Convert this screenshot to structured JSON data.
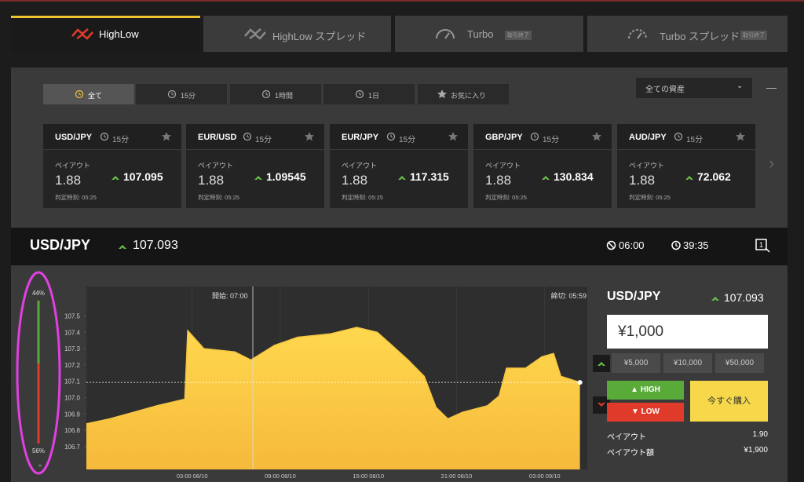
{
  "tabs": [
    {
      "label": "HighLow"
    },
    {
      "label": "HighLow スプレッド"
    },
    {
      "label": "Turbo",
      "badge": "取引終了"
    },
    {
      "label": "Turbo スプレッド",
      "badge": "取引終了"
    }
  ],
  "filters": [
    "全て",
    "15分",
    "1時間",
    "1日",
    "お気に入り"
  ],
  "asset_select": "全ての資産",
  "assets": [
    {
      "pair": "USD/JPY",
      "duration": "15分",
      "payout_label": "ペイアウト",
      "payout": 1.88,
      "price": 107.095,
      "expiry": "判定時刻: 05:25"
    },
    {
      "pair": "EUR/USD",
      "duration": "15分",
      "payout_label": "ペイアウト",
      "payout": 1.88,
      "price": 1.09545,
      "expiry": "判定時刻: 05:25"
    },
    {
      "pair": "EUR/JPY",
      "duration": "15分",
      "payout_label": "ペイアウト",
      "payout": 1.88,
      "price": 117.315,
      "expiry": "判定時刻: 05:25"
    },
    {
      "pair": "GBP/JPY",
      "duration": "15分",
      "payout_label": "ペイアウト",
      "payout": 1.88,
      "price": 130.834,
      "expiry": "判定時刻: 05:25"
    },
    {
      "pair": "AUD/JPY",
      "duration": "15分",
      "payout_label": "ペイアウト",
      "payout": 1.88,
      "price": 72.062,
      "expiry": "判定時刻: 05:25"
    }
  ],
  "header": {
    "pair": "USD/JPY",
    "price": 107.093,
    "time": "06:00",
    "countdown": "39:35"
  },
  "gauge": {
    "values": [
      44,
      56
    ],
    "value_labels": [
      "44%",
      "56%"
    ]
  },
  "price_chart": {
    "type": "area",
    "x": [
      -7.2,
      -5.6,
      -4.0,
      -2.4,
      -0.5,
      -0.3,
      0.8,
      2.9,
      4.0,
      5.6,
      7.2,
      9.4,
      11.2,
      12.6,
      13.6,
      14.7,
      15.8,
      16.6,
      17.4,
      18.4,
      20.1,
      20.9,
      21.4,
      22.7,
      23.8,
      24.6,
      25.1,
      26.4
    ],
    "values": [
      106.84,
      106.87,
      106.91,
      106.95,
      106.99,
      107.41,
      107.3,
      107.28,
      107.23,
      107.32,
      107.37,
      107.39,
      107.43,
      107.4,
      107.32,
      107.23,
      107.13,
      106.94,
      106.87,
      106.91,
      106.95,
      107.01,
      107.18,
      107.18,
      107.25,
      107.27,
      107.13,
      107.093
    ],
    "xlim": [
      -7.2,
      26.9
    ],
    "ylim": [
      106.56,
      107.68
    ],
    "yticks": [
      107.5,
      107.4,
      107.3,
      107.2,
      107.1,
      {
        "value": 107,
        "label": "107.0"
      },
      106.9,
      106.8,
      106.7
    ],
    "xticks": [
      {
        "value": 0,
        "label": "03:00 08/10"
      },
      {
        "value": 6,
        "label": "09:00 08/10"
      },
      {
        "value": 12,
        "label": "15:00 08/10"
      },
      {
        "value": 18,
        "label": "21:00 08/10"
      },
      {
        "value": 24,
        "label": "03:00 09/10"
      }
    ],
    "start_label": "開始: 07:00",
    "end_label": "締切: 05:59"
  },
  "trade": {
    "pair": "USD/JPY",
    "price": 107.093,
    "amount": "¥1,000",
    "presets": [
      "¥5,000",
      "¥10,000",
      "¥50,000"
    ],
    "high": "HIGH",
    "low": "LOW",
    "buy": "今すぐ購入",
    "payout_label": "ペイアウト",
    "payout": "1.90",
    "payout_amount_label": "ペイアウト額",
    "payout_amount": "¥1,900"
  }
}
